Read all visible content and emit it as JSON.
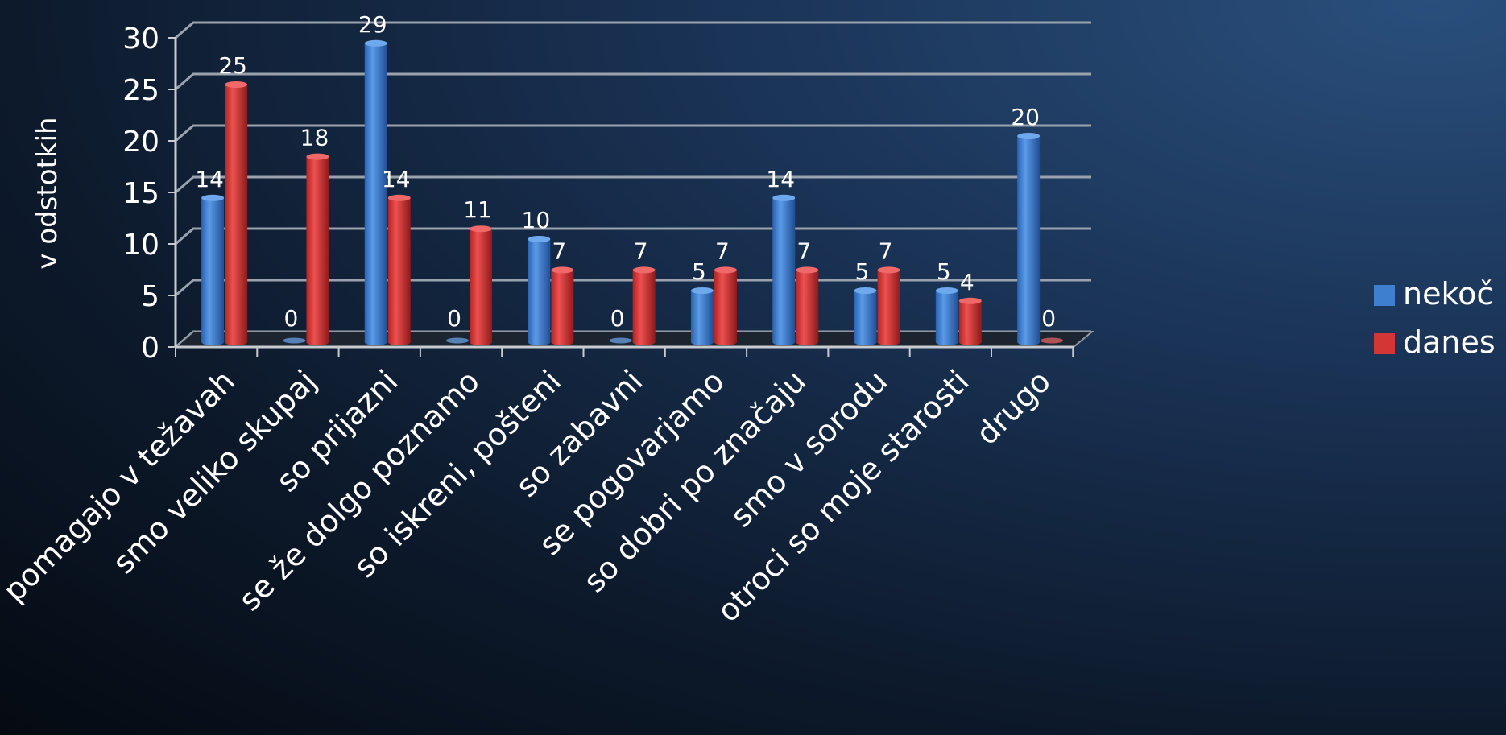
{
  "chart_data": {
    "type": "bar",
    "ylabel": "v odstotkih",
    "ylim": [
      0,
      30
    ],
    "yticks": [
      0,
      5,
      10,
      15,
      20,
      25,
      30
    ],
    "grid": true,
    "legend_position": "right",
    "categories": [
      "pomagajo v težavah",
      "smo veliko skupaj",
      "so prijazni",
      "se že dolgo poznamo",
      "so iskreni, pošteni",
      "so zabavni",
      "se pogovarjamo",
      "so dobri po značaju",
      "smo v sorodu",
      "otroci so moje starosti",
      "drugo"
    ],
    "series": [
      {
        "name": "nekoč",
        "color": "#3f7fd0",
        "values": [
          14,
          0,
          29,
          0,
          10,
          0,
          5,
          14,
          5,
          5,
          20
        ]
      },
      {
        "name": "danes",
        "color": "#d43636",
        "values": [
          25,
          18,
          14,
          11,
          7,
          7,
          7,
          7,
          7,
          4,
          0
        ]
      }
    ]
  }
}
